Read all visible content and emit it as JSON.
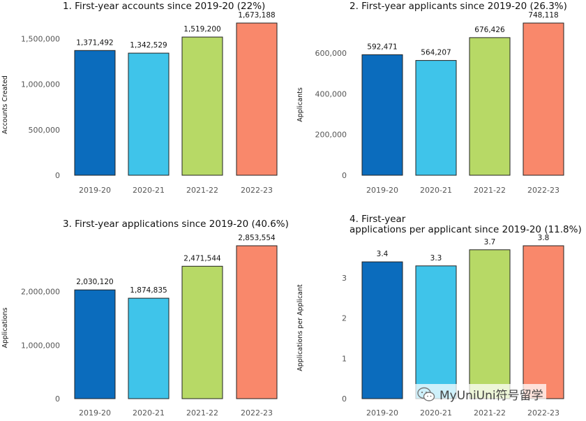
{
  "colors": [
    "#0b6cbd",
    "#3fc4ea",
    "#b7d966",
    "#f9886b"
  ],
  "chart_data": [
    {
      "type": "bar",
      "title": "1. First-year accounts since 2019-20 (22%)",
      "xlabel": "",
      "ylabel": "Accounts Created",
      "categories": [
        "2019-20",
        "2020-21",
        "2021-22",
        "2022-23"
      ],
      "values": [
        1371492,
        1342529,
        1519200,
        1673188
      ],
      "value_labels": [
        "1,371,492",
        "1,342,529",
        "1,519,200",
        "1,673,188"
      ],
      "yticks": [
        0,
        500000,
        1000000,
        1500000
      ],
      "ytick_labels": [
        "0",
        "500,000",
        "1,000,000",
        "1,500,000"
      ],
      "ylim": [
        0,
        1673188
      ]
    },
    {
      "type": "bar",
      "title": "2. First-year applicants since 2019-20 (26.3%)",
      "xlabel": "",
      "ylabel": "Applicants",
      "categories": [
        "2019-20",
        "2020-21",
        "2021-22",
        "2022-23"
      ],
      "values": [
        592471,
        564207,
        676426,
        748118
      ],
      "value_labels": [
        "592,471",
        "564,207",
        "676,426",
        "748,118"
      ],
      "yticks": [
        0,
        200000,
        400000,
        600000
      ],
      "ytick_labels": [
        "0",
        "200,000",
        "400,000",
        "600,000"
      ],
      "ylim": [
        0,
        748118
      ]
    },
    {
      "type": "bar",
      "title": "3. First-year applications since 2019-20 (40.6%)",
      "xlabel": "",
      "ylabel": "Applications",
      "categories": [
        "2019-20",
        "2020-21",
        "2021-22",
        "2022-23"
      ],
      "values": [
        2030120,
        1874835,
        2471544,
        2853554
      ],
      "value_labels": [
        "2,030,120",
        "1,874,835",
        "2,471,544",
        "2,853,554"
      ],
      "yticks": [
        0,
        1000000,
        2000000
      ],
      "ytick_labels": [
        "0",
        "1,000,000",
        "2,000,000"
      ],
      "ylim": [
        0,
        2853554
      ]
    },
    {
      "type": "bar",
      "title": "4. First-year\napplications per applicant since 2019-20 (11.8%)",
      "xlabel": "",
      "ylabel": "Applications per Applicant",
      "categories": [
        "2019-20",
        "2020-21",
        "2021-22",
        "2022-23"
      ],
      "values": [
        3.4,
        3.3,
        3.7,
        3.8
      ],
      "value_labels": [
        "3.4",
        "3.3",
        "3.7",
        "3.8"
      ],
      "yticks": [
        0,
        1,
        2,
        3
      ],
      "ytick_labels": [
        "0",
        "1",
        "2",
        "3"
      ],
      "ylim": [
        0,
        3.8
      ]
    }
  ],
  "watermark": {
    "text": "MyUniUni符号留学",
    "icon": "wechat-icon"
  }
}
